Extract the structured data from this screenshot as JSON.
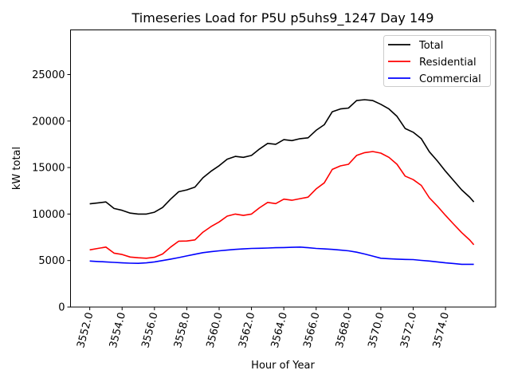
{
  "chart_data": {
    "type": "line",
    "title": "Timeseries Load for P5U p5uhs9_1247  Day 149",
    "xlabel": "Hour of Year",
    "ylabel": "kW total",
    "xlim": [
      3550.81,
      3577.1
    ],
    "ylim": [
      0,
      29800
    ],
    "grid": false,
    "legend_position": "top-right",
    "x_ticks": [
      3552,
      3554,
      3556,
      3558,
      3560,
      3562,
      3564,
      3566,
      3568,
      3570,
      3572,
      3574
    ],
    "x_tick_labels": [
      "3552.0",
      "3554.0",
      "3556.0",
      "3558.0",
      "3560.0",
      "3562.0",
      "3564.0",
      "3566.0",
      "3568.0",
      "3570.0",
      "3572.0",
      "3574.0"
    ],
    "y_ticks": [
      0,
      5000,
      10000,
      15000,
      20000,
      25000
    ],
    "y_tick_labels": [
      "0",
      "5000",
      "10000",
      "15000",
      "20000",
      "25000"
    ],
    "x": [
      3552,
      3552.5,
      3553,
      3553.5,
      3554,
      3554.5,
      3555,
      3555.5,
      3556,
      3556.5,
      3557,
      3557.5,
      3558,
      3558.5,
      3559,
      3559.5,
      3560,
      3560.5,
      3561,
      3561.5,
      3562,
      3562.5,
      3563,
      3563.5,
      3564,
      3564.5,
      3565,
      3565.5,
      3566,
      3566.5,
      3567,
      3567.5,
      3568,
      3568.5,
      3569,
      3569.5,
      3570,
      3570.5,
      3571,
      3571.5,
      3572,
      3572.5,
      3573,
      3573.5,
      3574,
      3574.5,
      3575,
      3575.5,
      3575.75
    ],
    "series": [
      {
        "name": "Total",
        "color": "#000000",
        "values": [
          11100,
          11200,
          11300,
          10600,
          10400,
          10100,
          10000,
          10000,
          10200,
          10700,
          11600,
          12400,
          12600,
          12900,
          13900,
          14600,
          15200,
          15900,
          16200,
          16100,
          16300,
          17000,
          17600,
          17500,
          18000,
          17900,
          18100,
          18200,
          19000,
          19600,
          21000,
          21300,
          21400,
          22200,
          22300,
          22200,
          21800,
          21300,
          20500,
          19200,
          18800,
          18100,
          16700,
          15700,
          14600,
          13600,
          12600,
          11800,
          11300
        ]
      },
      {
        "name": "Residential",
        "color": "#ff0000",
        "values": [
          6150,
          6300,
          6450,
          5800,
          5650,
          5380,
          5300,
          5250,
          5350,
          5700,
          6450,
          7080,
          7100,
          7220,
          8050,
          8650,
          9150,
          9780,
          10000,
          9850,
          10000,
          10680,
          11250,
          11120,
          11600,
          11480,
          11650,
          11820,
          12700,
          13350,
          14800,
          15180,
          15350,
          16300,
          16600,
          16720,
          16550,
          16100,
          15350,
          14080,
          13700,
          13080,
          11750,
          10850,
          9850,
          8920,
          8000,
          7200,
          6700
        ]
      },
      {
        "name": "Commercial",
        "color": "#0000ff",
        "values": [
          4950,
          4900,
          4850,
          4800,
          4750,
          4720,
          4700,
          4750,
          4850,
          5000,
          5150,
          5320,
          5500,
          5680,
          5850,
          5950,
          6050,
          6120,
          6200,
          6250,
          6300,
          6320,
          6350,
          6380,
          6400,
          6420,
          6450,
          6380,
          6300,
          6250,
          6200,
          6120,
          6050,
          5900,
          5700,
          5480,
          5250,
          5200,
          5150,
          5120,
          5100,
          5020,
          4950,
          4850,
          4750,
          4680,
          4600,
          4600,
          4600
        ]
      }
    ]
  }
}
